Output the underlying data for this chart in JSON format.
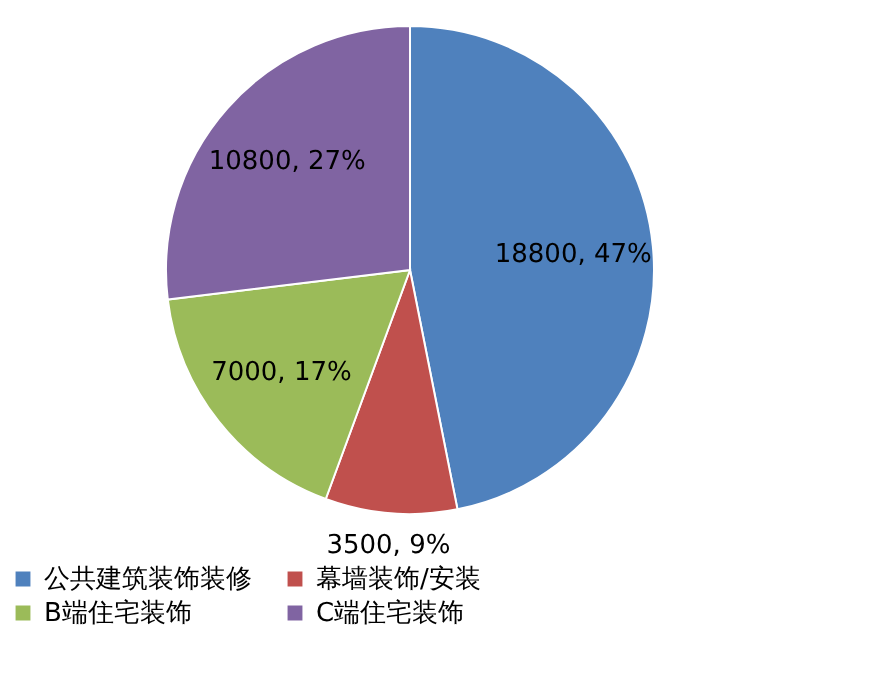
{
  "chart_data": {
    "type": "pie",
    "categories": [
      "公共建筑装饰装修",
      "幕墙装饰/安装",
      "B端住宅装饰",
      "C端住宅装饰"
    ],
    "values": [
      18800,
      3500,
      7000,
      10800
    ],
    "colors": [
      "#4f81bd",
      "#c0504d",
      "#9bbb59",
      "#8064a2"
    ],
    "value_labels": [
      "18800, 47%",
      "3500, 9%",
      "7000, 17%",
      "10800, 27%"
    ],
    "legend": "bottom"
  }
}
